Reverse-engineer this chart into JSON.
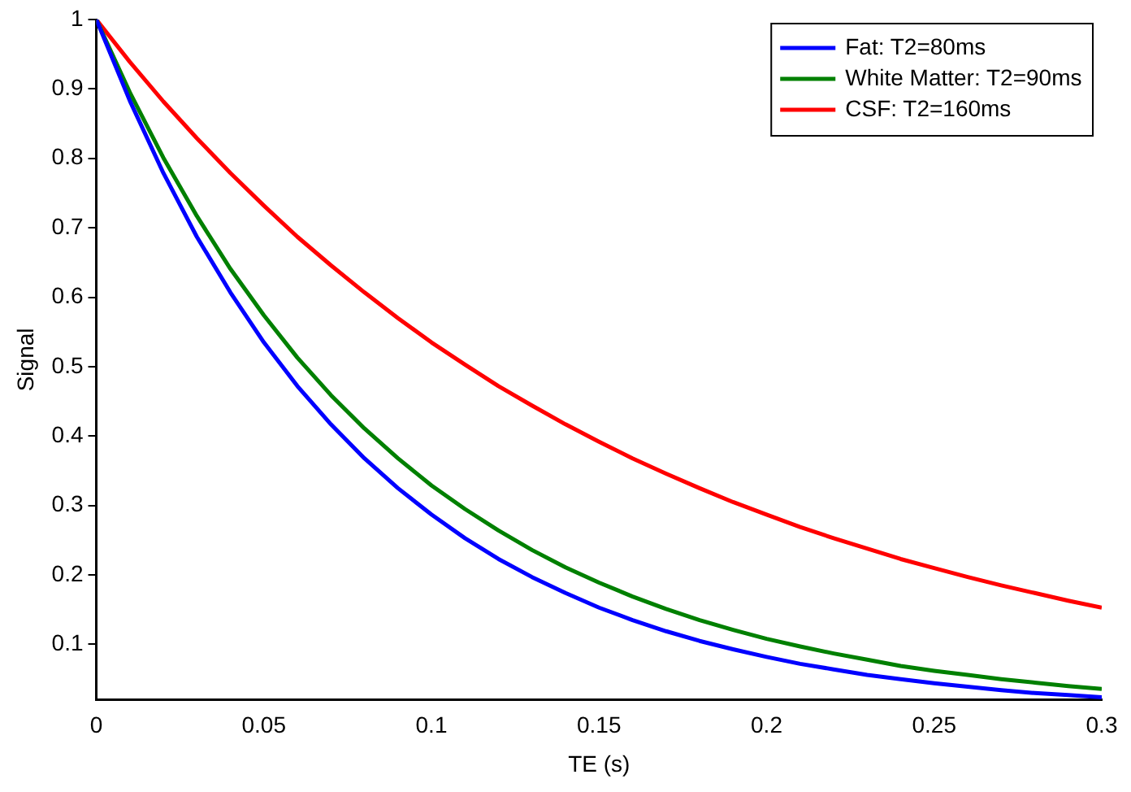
{
  "chart_data": {
    "type": "line",
    "xlabel": "TE (s)",
    "ylabel": "Signal",
    "x": [
      0,
      0.01,
      0.02,
      0.03,
      0.04,
      0.05,
      0.06,
      0.07,
      0.08,
      0.09,
      0.1,
      0.11,
      0.12,
      0.13,
      0.14,
      0.15,
      0.16,
      0.17,
      0.18,
      0.19,
      0.2,
      0.21,
      0.22,
      0.23,
      0.24,
      0.25,
      0.26,
      0.27,
      0.28,
      0.29,
      0.3
    ],
    "series": [
      {
        "name": "Fat: T2=80ms",
        "color": "#0000ff",
        "values": [
          1,
          0.883,
          0.779,
          0.687,
          0.607,
          0.535,
          0.472,
          0.417,
          0.368,
          0.325,
          0.287,
          0.253,
          0.223,
          0.197,
          0.174,
          0.153,
          0.135,
          0.119,
          0.105,
          0.093,
          0.082,
          0.072,
          0.064,
          0.056,
          0.05,
          0.044,
          0.039,
          0.034,
          0.03,
          0.027,
          0.024
        ]
      },
      {
        "name": "White Matter: T2=90ms",
        "color": "#008000",
        "values": [
          1,
          0.895,
          0.801,
          0.717,
          0.641,
          0.574,
          0.513,
          0.459,
          0.411,
          0.368,
          0.329,
          0.295,
          0.264,
          0.236,
          0.211,
          0.189,
          0.169,
          0.151,
          0.135,
          0.121,
          0.108,
          0.097,
          0.087,
          0.078,
          0.069,
          0.062,
          0.056,
          0.05,
          0.045,
          0.04,
          0.036
        ]
      },
      {
        "name": "CSF: T2=160ms",
        "color": "#ff0000",
        "values": [
          1,
          0.939,
          0.882,
          0.829,
          0.779,
          0.732,
          0.687,
          0.646,
          0.607,
          0.57,
          0.535,
          0.503,
          0.472,
          0.444,
          0.417,
          0.392,
          0.368,
          0.346,
          0.325,
          0.305,
          0.287,
          0.269,
          0.253,
          0.238,
          0.223,
          0.21,
          0.197,
          0.185,
          0.174,
          0.163,
          0.153
        ]
      }
    ],
    "xlim": [
      0,
      0.3
    ],
    "xticks": [
      0,
      0.05,
      0.1,
      0.15,
      0.2,
      0.25,
      0.3
    ],
    "ylim": [
      0.02,
      1
    ],
    "yticks": [
      0.1,
      0.2,
      0.3,
      0.4,
      0.5,
      0.6,
      0.7,
      0.8,
      0.9,
      1
    ],
    "grid": false,
    "legend": "top right",
    "marker": "none",
    "line_style": "solid"
  }
}
